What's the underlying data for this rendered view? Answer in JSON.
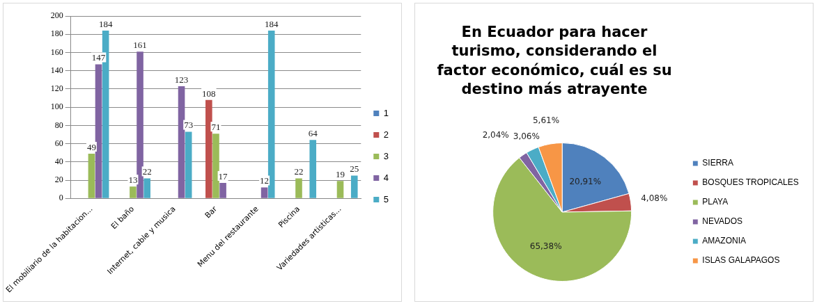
{
  "chart_data": [
    {
      "type": "bar",
      "categories": [
        "El mobiliario de la habitacion...",
        "El baño",
        "Internet, cable y musica",
        "Bar",
        "Menu del restaurante",
        "Piscina",
        "Variedades artisticas..."
      ],
      "series": [
        {
          "name": "1",
          "color": "#4f81bd",
          "values": [
            null,
            null,
            null,
            null,
            null,
            null,
            null
          ]
        },
        {
          "name": "2",
          "color": "#c0504d",
          "values": [
            null,
            null,
            null,
            108,
            null,
            null,
            null
          ]
        },
        {
          "name": "3",
          "color": "#9bbb59",
          "values": [
            49,
            13,
            null,
            71,
            null,
            22,
            19
          ]
        },
        {
          "name": "4",
          "color": "#8064a2",
          "values": [
            147,
            161,
            123,
            17,
            12,
            null,
            null
          ]
        },
        {
          "name": "5",
          "color": "#4bacc6",
          "values": [
            184,
            22,
            73,
            null,
            184,
            64,
            25
          ]
        }
      ],
      "ylim": [
        0,
        200
      ],
      "yticks": [
        0,
        20,
        40,
        60,
        80,
        100,
        120,
        140,
        160,
        180,
        200
      ],
      "grid": "y",
      "legend": "right",
      "data_labels": true
    },
    {
      "type": "pie",
      "title": "En Ecuador para hacer turismo, considerando el factor económico, cuál es su destino más atrayente",
      "categories": [
        "SIERRA",
        "BOSQUES TROPICALES",
        "PLAYA",
        "NEVADOS",
        "AMAZONIA",
        "ISLAS GALAPAGOS"
      ],
      "values": [
        20.91,
        4.08,
        65.38,
        2.04,
        3.06,
        5.61
      ],
      "value_labels": [
        "20,91%",
        "4,08%",
        "65,38%",
        "2,04%",
        "3,06%",
        "5,61%"
      ],
      "colors": [
        "#4f81bd",
        "#c0504d",
        "#9bbb59",
        "#8064a2",
        "#4bacc6",
        "#f79646"
      ],
      "legend": "right"
    }
  ]
}
